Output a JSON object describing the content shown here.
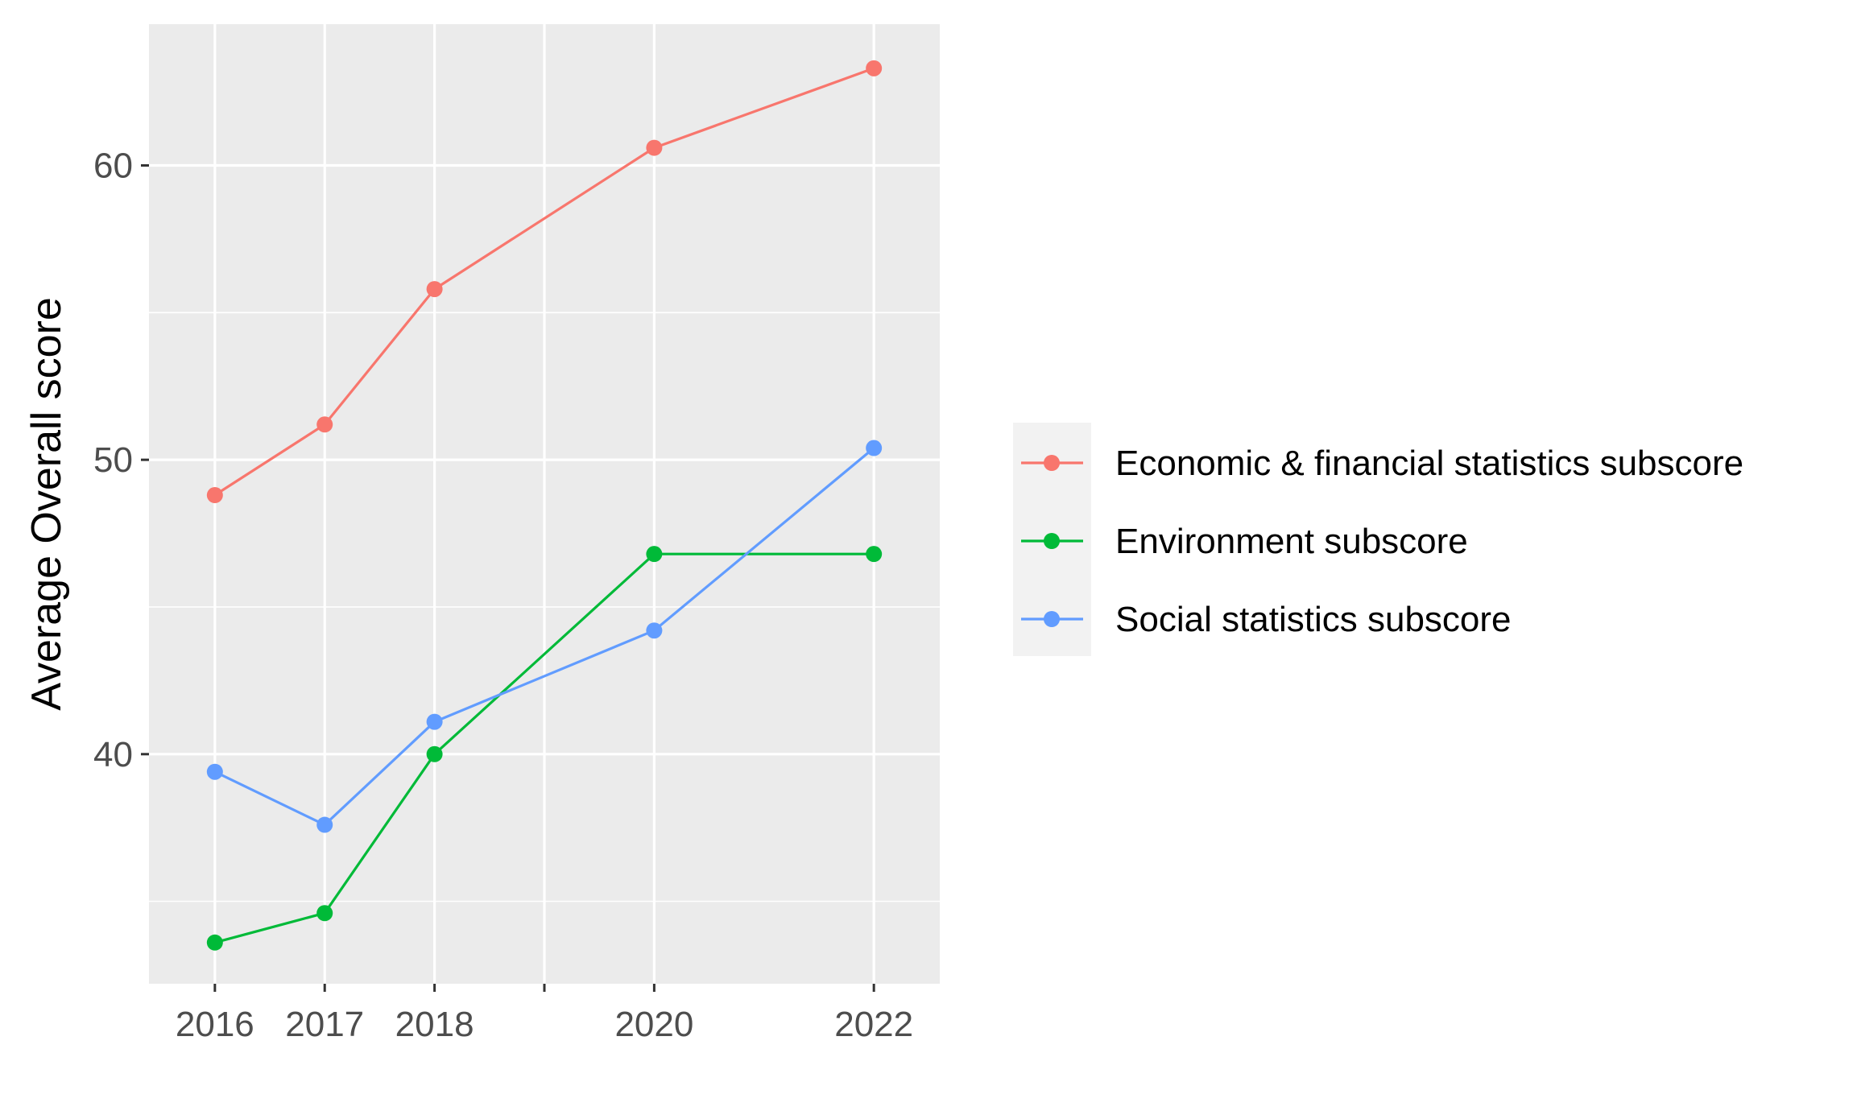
{
  "chart_data": {
    "type": "line",
    "title": "",
    "xlabel": "",
    "ylabel": "Average Overall score",
    "x": [
      2016,
      2017,
      2018,
      2020,
      2022
    ],
    "x_ticks": [
      2016,
      2017,
      2018,
      2019,
      2020,
      2022
    ],
    "x_tick_labels": [
      "2016",
      "2017",
      "2018",
      "",
      "2020",
      "2022"
    ],
    "xlim": [
      2015.4,
      2022.6
    ],
    "y_ticks": [
      40,
      50,
      60
    ],
    "y_tick_labels": [
      "40",
      "50",
      "60"
    ],
    "y_minor_ticks": [
      35,
      45,
      55
    ],
    "ylim": [
      32.2,
      64.8
    ],
    "grid": true,
    "legend_position": "right",
    "series": [
      {
        "name": "Economic & financial statistics subscore",
        "color": "#F8766D",
        "values": [
          48.8,
          51.2,
          55.8,
          60.6,
          63.3
        ]
      },
      {
        "name": "Environment subscore",
        "color": "#00BA38",
        "values": [
          33.6,
          34.6,
          40.0,
          46.8,
          46.8
        ]
      },
      {
        "name": "Social statistics subscore",
        "color": "#619CFF",
        "values": [
          39.4,
          37.6,
          41.1,
          44.2,
          50.4
        ]
      }
    ]
  }
}
